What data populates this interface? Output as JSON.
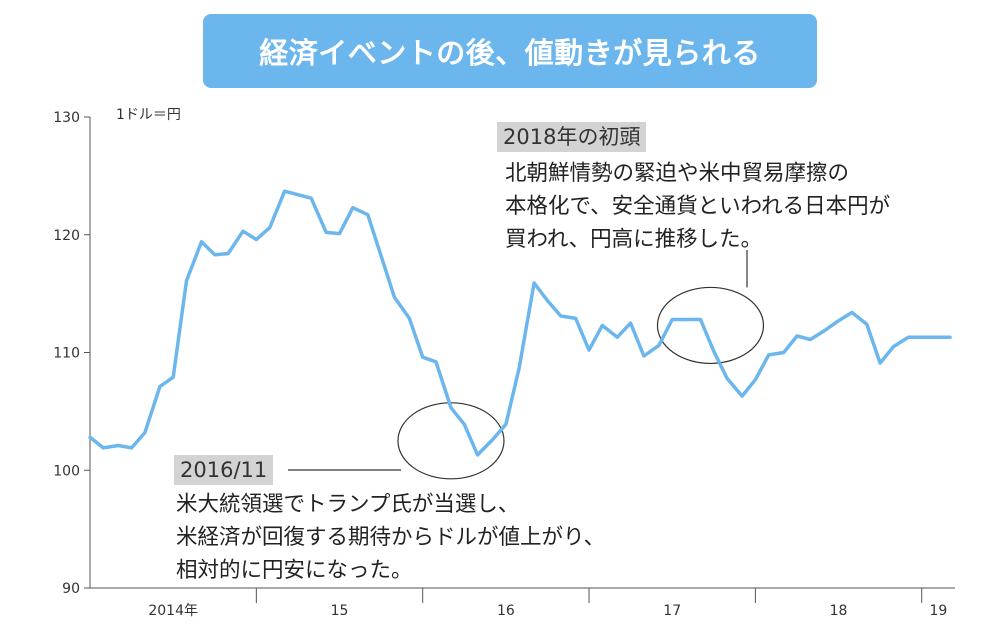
{
  "chart_data": {
    "type": "line",
    "title": "経済イベントの後、値動きが見られる",
    "unit_label": "1ドル＝円",
    "ylim": [
      90,
      130
    ],
    "yticks": [
      90,
      100,
      110,
      120,
      130
    ],
    "x_range": [
      2014.0,
      2019.2
    ],
    "x_axis_segments": [
      {
        "label": "2014年",
        "start": 2014.0,
        "end": 2015.0
      },
      {
        "label": "15",
        "start": 2015.0,
        "end": 2016.0
      },
      {
        "label": "16",
        "start": 2016.0,
        "end": 2017.0
      },
      {
        "label": "17",
        "start": 2017.0,
        "end": 2018.0
      },
      {
        "label": "18",
        "start": 2018.0,
        "end": 2019.0
      },
      {
        "label": "19",
        "start": 2019.0,
        "end": 2019.2
      }
    ],
    "series": [
      {
        "color": "#6cb6ee",
        "x": [
          2014.0,
          2014.08,
          2014.17,
          2014.25,
          2014.33,
          2014.42,
          2014.5,
          2014.58,
          2014.67,
          2014.75,
          2014.83,
          2014.92,
          2015.0,
          2015.08,
          2015.17,
          2015.25,
          2015.33,
          2015.42,
          2015.5,
          2015.58,
          2015.67,
          2015.75,
          2015.83,
          2015.92,
          2016.0,
          2016.08,
          2016.17,
          2016.25,
          2016.33,
          2016.42,
          2016.5,
          2016.58,
          2016.67,
          2016.75,
          2016.83,
          2016.92,
          2017.0,
          2017.08,
          2017.17,
          2017.25,
          2017.33,
          2017.42,
          2017.5,
          2017.58,
          2017.67,
          2017.75,
          2017.83,
          2017.92,
          2018.0,
          2018.08,
          2018.17,
          2018.25,
          2018.33,
          2018.42,
          2018.5,
          2018.58,
          2018.67,
          2018.75,
          2018.83,
          2018.92,
          2019.0,
          2019.08,
          2019.17
        ],
        "values": [
          102.8,
          101.9,
          102.1,
          101.9,
          103.2,
          107.1,
          107.9,
          116.1,
          119.4,
          118.3,
          118.4,
          120.3,
          119.6,
          120.6,
          123.7,
          123.4,
          123.1,
          120.2,
          120.1,
          122.3,
          121.7,
          118.2,
          114.7,
          112.9,
          109.6,
          109.2,
          105.3,
          103.9,
          101.3,
          102.6,
          103.9,
          108.7,
          115.9,
          114.4,
          113.1,
          112.9,
          110.2,
          112.3,
          111.3,
          112.5,
          109.7,
          110.6,
          112.8,
          112.8,
          112.8,
          110.1,
          107.8,
          106.3,
          107.7,
          109.8,
          110.0,
          111.4,
          111.1,
          111.9,
          112.7,
          113.4,
          112.4,
          109.1,
          110.5,
          111.3,
          111.3,
          111.3,
          111.3
        ]
      }
    ],
    "annotations": [
      {
        "tag": "2016/11",
        "lines": [
          "米大統領選でトランプ氏が当選し、",
          "米経済が回復する期待からドルが値上がり、",
          "相対的に円安になった。"
        ],
        "circle_center": [
          2016.17,
          102.5
        ]
      },
      {
        "tag": "2018年の初頭",
        "lines": [
          "北朝鮮情勢の緊迫や米中貿易摩擦の",
          "本格化で、安全通貨といわれる日本円が",
          "買われ、円高に推移した。"
        ],
        "circle_center": [
          2017.73,
          112.3
        ]
      }
    ],
    "grid": false,
    "legend": "none"
  },
  "colors": {
    "line": "#6cb6ee",
    "banner": "#6cb6ee",
    "tag_bg": "#d3d3d3",
    "axis": "#555555",
    "callout": "#333333"
  }
}
